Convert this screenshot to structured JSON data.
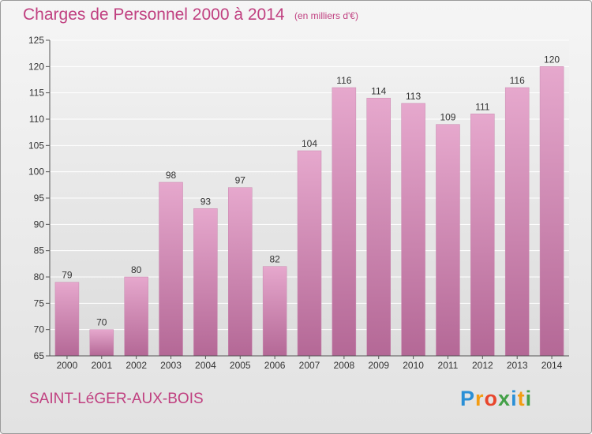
{
  "title": "Charges de Personnel 2000 à 2014",
  "subtitle": "(en milliers d'€)",
  "place": "SAINT-LéGER-AUX-BOIS",
  "logo": {
    "letters": [
      "P",
      "r",
      "o",
      "x",
      "i",
      "t",
      "i"
    ],
    "colors": [
      "#2a8fd6",
      "#f39c12",
      "#e8462c",
      "#43a047",
      "#2a8fd6",
      "#f39c12",
      "#43a047"
    ]
  },
  "colors": {
    "bar": "#d98cb8",
    "text": "#c04080"
  },
  "chart_data": {
    "type": "bar",
    "categories": [
      "2000",
      "2001",
      "2002",
      "2003",
      "2004",
      "2005",
      "2006",
      "2007",
      "2008",
      "2009",
      "2010",
      "2011",
      "2012",
      "2013",
      "2014"
    ],
    "values": [
      79,
      70,
      80,
      98,
      93,
      97,
      82,
      104,
      116,
      114,
      113,
      109,
      111,
      116,
      120
    ],
    "ylim": [
      65,
      125
    ],
    "yticks": [
      65,
      70,
      75,
      80,
      85,
      90,
      95,
      100,
      105,
      110,
      115,
      120,
      125
    ],
    "grid": true
  }
}
